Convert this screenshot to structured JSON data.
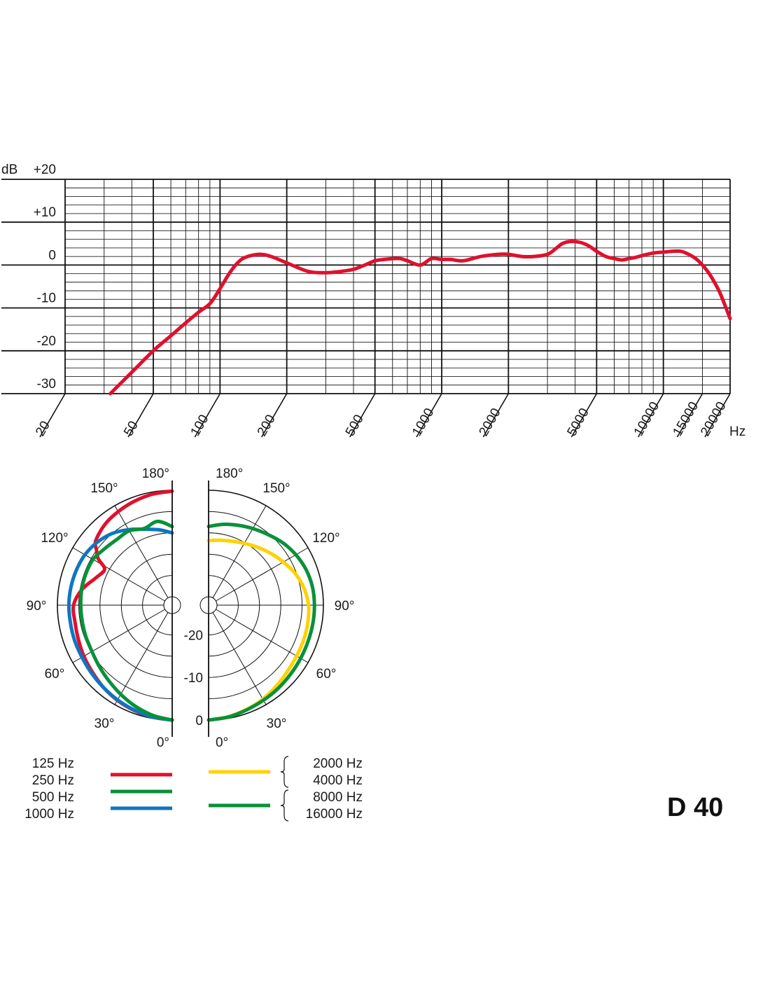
{
  "model_label": "D 40",
  "chart_data": [
    {
      "type": "line",
      "title": "",
      "ylabel": "dB",
      "xlabel": "Hz",
      "x_scale": "log",
      "xlim": [
        20,
        20000
      ],
      "ylim": [
        -30,
        20
      ],
      "y_ticks": [
        20,
        10,
        0,
        -10,
        -20,
        -30
      ],
      "y_tick_labels": [
        "+20",
        "+10",
        "0",
        "-10",
        "-20",
        "-30"
      ],
      "x_ticks": [
        20,
        50,
        100,
        200,
        500,
        1000,
        2000,
        5000,
        10000,
        15000,
        20000
      ],
      "x_tick_labels": [
        "20",
        "50",
        "100",
        "200",
        "500",
        "1000",
        "2000",
        "5000",
        "10000",
        "15000",
        "20000"
      ],
      "grid": true,
      "series": [
        {
          "color": "#e0102d",
          "x": [
            32,
            40,
            50,
            60,
            70,
            80,
            90,
            100,
            110,
            120,
            130,
            150,
            170,
            200,
            250,
            300,
            350,
            400,
            450,
            500,
            550,
            600,
            650,
            700,
            800,
            900,
            1000,
            1100,
            1250,
            1500,
            1800,
            2000,
            2300,
            2600,
            3000,
            3300,
            3500,
            3800,
            4200,
            4600,
            5000,
            5500,
            6000,
            6500,
            7000,
            7500,
            8000,
            9000,
            10000,
            11000,
            12000,
            13000,
            14000,
            15000,
            16000,
            17000,
            18000,
            19000,
            20000
          ],
          "y": [
            -30,
            -25,
            -20,
            -16.5,
            -13.5,
            -11,
            -9,
            -5.5,
            -2,
            0.5,
            1.8,
            2.5,
            2,
            0.5,
            -1.5,
            -1.8,
            -1.5,
            -1,
            0,
            1,
            1.3,
            1.5,
            1.5,
            1,
            0,
            1.5,
            1.3,
            1.3,
            1,
            2,
            2.5,
            2.5,
            2,
            2,
            2.5,
            4,
            5,
            5.5,
            5.3,
            4.5,
            3.2,
            2,
            1.5,
            1.2,
            1.5,
            1.8,
            2.2,
            2.8,
            3,
            3.2,
            3.2,
            2.5,
            1.5,
            0,
            -1.8,
            -4,
            -6.5,
            -9.5,
            -12.5
          ]
        }
      ]
    },
    {
      "type": "polar",
      "title": "",
      "angle_labels": [
        "0°",
        "30°",
        "60°",
        "90°",
        "120°",
        "150°",
        "180°"
      ],
      "radial_labels": [
        "0",
        "-10",
        "-20"
      ],
      "series": [
        {
          "side": "left",
          "color": "#e0102d",
          "angles": [
            0,
            10,
            20,
            30,
            40,
            50,
            60,
            70,
            80,
            90,
            100,
            110,
            118,
            122,
            126,
            130,
            140,
            150,
            160,
            170,
            180
          ],
          "levels": [
            0,
            -0.3,
            -0.7,
            -1.2,
            -1.8,
            -2.5,
            -3,
            -3.5,
            -3.8,
            -3.8,
            -5.5,
            -8,
            -9,
            -6.5,
            -5,
            -3.5,
            -2.3,
            -1.6,
            -1,
            -0.5,
            -0.2
          ]
        },
        {
          "side": "left",
          "color": "#0e76c0",
          "angles": [
            0,
            10,
            20,
            30,
            40,
            50,
            60,
            70,
            80,
            90,
            100,
            110,
            120,
            130,
            140,
            150,
            160,
            170,
            180
          ],
          "levels": [
            0,
            -0.3,
            -0.8,
            -1.3,
            -1.8,
            -2.2,
            -2.5,
            -2.6,
            -2.7,
            -2.7,
            -2.8,
            -3,
            -3.3,
            -4,
            -5,
            -6.5,
            -8,
            -9,
            -10
          ]
        },
        {
          "side": "left",
          "color": "#08913a",
          "angles": [
            0,
            10,
            20,
            30,
            40,
            50,
            60,
            70,
            80,
            90,
            100,
            110,
            120,
            130,
            140,
            150,
            160,
            170,
            180
          ],
          "levels": [
            0,
            -0.7,
            -1.7,
            -2.8,
            -3.8,
            -4.6,
            -5.2,
            -5.4,
            -5.5,
            -5.5,
            -5.4,
            -5.4,
            -5.5,
            -6.3,
            -6.8,
            -6.8,
            -7.8,
            -7,
            -8.5
          ]
        },
        {
          "side": "right",
          "color": "#ffd200",
          "angles": [
            0,
            10,
            20,
            30,
            40,
            50,
            60,
            70,
            80,
            90,
            100,
            110,
            120,
            130,
            140,
            150,
            160,
            170,
            180
          ],
          "levels": [
            0,
            -0.4,
            -0.9,
            -1.5,
            -2.2,
            -2.8,
            -3.1,
            -3.2,
            -3.3,
            -3.5,
            -4.2,
            -5.3,
            -6.7,
            -8,
            -9.2,
            -10.2,
            -11,
            -11.5,
            -11.8
          ]
        },
        {
          "side": "right",
          "color": "#08913a",
          "angles": [
            0,
            10,
            20,
            30,
            40,
            50,
            60,
            70,
            80,
            90,
            100,
            110,
            120,
            130,
            140,
            150,
            160,
            170,
            180
          ],
          "levels": [
            0,
            -0.3,
            -0.8,
            -1.2,
            -1.5,
            -1.8,
            -2,
            -2.1,
            -2.1,
            -2.1,
            -2.2,
            -2.6,
            -3.3,
            -4.2,
            -5.3,
            -6.2,
            -7,
            -7.7,
            -8.5
          ]
        }
      ]
    }
  ],
  "legend": {
    "left_labels": [
      "125 Hz",
      "250 Hz",
      "500 Hz",
      "1000 Hz"
    ],
    "left_swatches": [
      "#e0102d",
      "#08913a",
      "#0e76c0"
    ],
    "right_groups": [
      {
        "labels": [
          "2000 Hz",
          "4000 Hz"
        ],
        "color": "#ffd200"
      },
      {
        "labels": [
          "8000 Hz",
          "16000 Hz"
        ],
        "color": "#08913a"
      }
    ]
  }
}
